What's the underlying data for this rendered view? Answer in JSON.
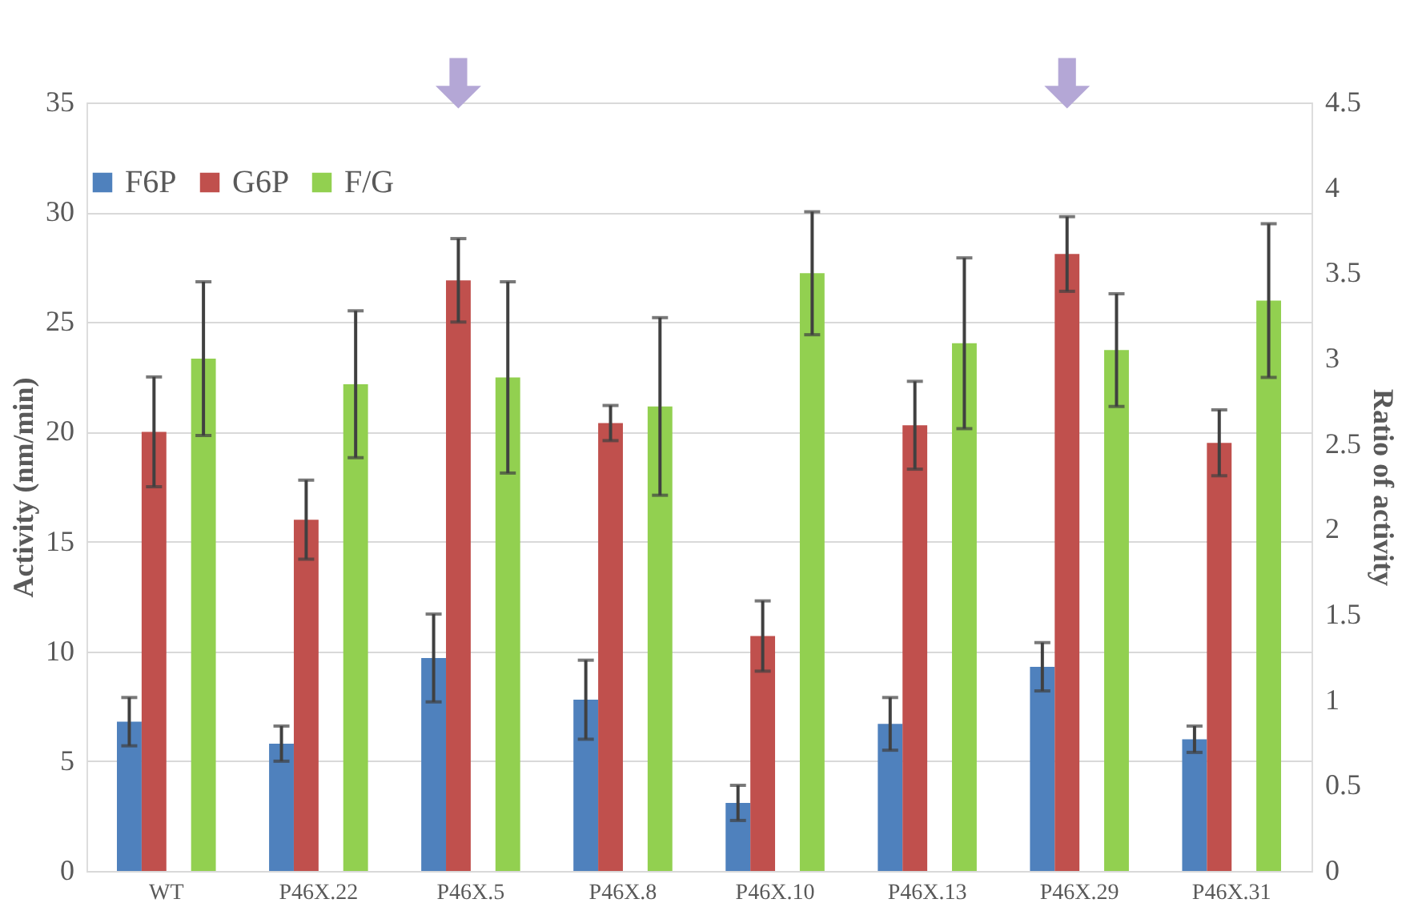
{
  "chart_data": {
    "type": "bar",
    "ylabel": "Activity (nm/min)",
    "y2label": "Ratio of activity",
    "categories": [
      "WT",
      "P46X.22",
      "P46X.5",
      "P46X.8",
      "P46X.10",
      "P46X.13",
      "P46X.29",
      "P46X.31"
    ],
    "series": [
      {
        "name": "F6P",
        "color": "#4f81bd",
        "values": [
          6.8,
          5.8,
          9.7,
          7.8,
          3.1,
          6.7,
          9.3,
          6.0
        ],
        "errors": [
          1.1,
          0.8,
          2.0,
          1.8,
          0.8,
          1.2,
          1.1,
          0.6
        ]
      },
      {
        "name": "G6P",
        "color": "#c0504d",
        "values": [
          20.0,
          16.0,
          26.9,
          20.4,
          10.7,
          20.3,
          28.1,
          19.5
        ],
        "errors": [
          2.5,
          1.8,
          1.9,
          0.8,
          1.6,
          2.0,
          1.7,
          1.5
        ]
      },
      {
        "name": "F/G",
        "color": "#92d050",
        "axis": "y2",
        "values": [
          3.0,
          2.85,
          2.89,
          2.72,
          3.5,
          3.09,
          3.05,
          3.34
        ],
        "errors": [
          0.45,
          0.43,
          0.56,
          0.52,
          0.36,
          0.5,
          0.33,
          0.45
        ]
      }
    ],
    "ylim": [
      0,
      35
    ],
    "yticks": [
      0,
      5,
      10,
      15,
      20,
      25,
      30,
      35
    ],
    "y2lim": [
      0,
      4.5
    ],
    "y2ticks": [
      0,
      0.5,
      1,
      1.5,
      2,
      2.5,
      3,
      3.5,
      4,
      4.5
    ],
    "grid": "y",
    "legend": "top"
  }
}
